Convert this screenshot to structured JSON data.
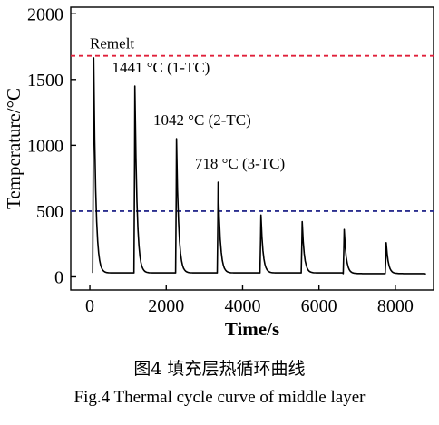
{
  "chart_data": {
    "type": "line",
    "title": "",
    "xlabel": "Time/s",
    "ylabel": "Temperature/°C",
    "xlim": [
      -500,
      9000
    ],
    "ylim": [
      -100,
      2050
    ],
    "xticks": [
      0,
      2000,
      4000,
      6000,
      8000
    ],
    "yticks": [
      0,
      500,
      1000,
      1500,
      2000
    ],
    "grid": false,
    "series": [
      {
        "color": "#000000",
        "peaks": [
          {
            "t": 100,
            "temp": 1665,
            "base": 30
          },
          {
            "t": 1180,
            "temp": 1450,
            "base": 30
          },
          {
            "t": 2270,
            "temp": 1050,
            "base": 30
          },
          {
            "t": 3360,
            "temp": 720,
            "base": 30
          },
          {
            "t": 4480,
            "temp": 470,
            "base": 30
          },
          {
            "t": 5560,
            "temp": 420,
            "base": 30
          },
          {
            "t": 6660,
            "temp": 360,
            "base": 25
          },
          {
            "t": 7760,
            "temp": 260,
            "base": 25
          }
        ],
        "end_t": 8800,
        "end_temp": 20
      }
    ],
    "reference_lines": [
      {
        "y": 1680,
        "label": "Remelt",
        "color": "#e0203a"
      },
      {
        "y": 500,
        "label": "",
        "color": "#2b2f8f"
      }
    ],
    "annotations": [
      {
        "text": "1441 °C (1-TC)",
        "x": 580,
        "y": 1555
      },
      {
        "text": "1042 °C (2-TC)",
        "x": 1660,
        "y": 1155
      },
      {
        "text": "718 °C (3-TC)",
        "x": 2750,
        "y": 825
      }
    ]
  },
  "caption": {
    "cn": "图4  填充层热循环曲线",
    "en": "Fig.4  Thermal cycle curve of middle layer"
  }
}
